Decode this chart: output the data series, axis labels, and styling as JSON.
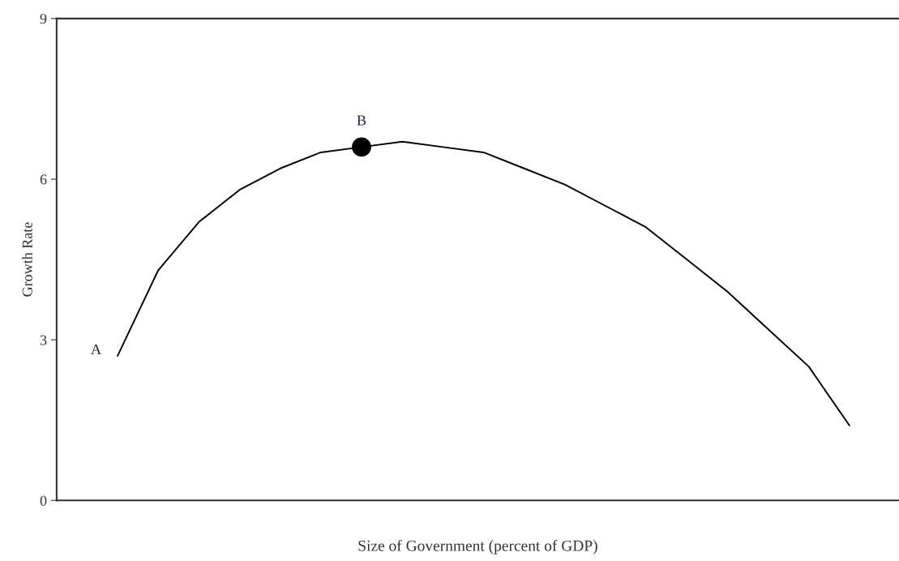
{
  "chart_data": {
    "type": "line",
    "xlabel": "Size of Government (percent of GDP)",
    "ylabel": "Growth Rate",
    "categories": [
      null,
      null,
      null,
      null,
      null,
      null,
      null,
      null,
      null,
      null,
      null,
      null,
      null,
      null,
      null,
      null,
      null,
      null,
      null
    ],
    "series": [
      {
        "name": "A",
        "color": "#000000",
        "values": [
          2.7,
          4.3,
          5.2,
          5.8,
          6.2,
          6.5,
          6.6,
          6.7,
          6.6,
          6.5,
          6.2,
          5.9,
          5.5,
          5.1,
          4.5,
          3.9,
          3.2,
          2.5,
          1.4
        ]
      },
      {
        "name": "B",
        "type": "scatter",
        "color": "#000000",
        "values": [
          null,
          null,
          null,
          null,
          null,
          null,
          6.6,
          null,
          null,
          null,
          null,
          null,
          null,
          null,
          null,
          null,
          null,
          null,
          null
        ]
      }
    ],
    "ylim": [
      0,
      9
    ],
    "yticks": [
      0,
      3,
      6,
      9
    ],
    "grid": false,
    "legend": false,
    "tick_labels": "y"
  }
}
